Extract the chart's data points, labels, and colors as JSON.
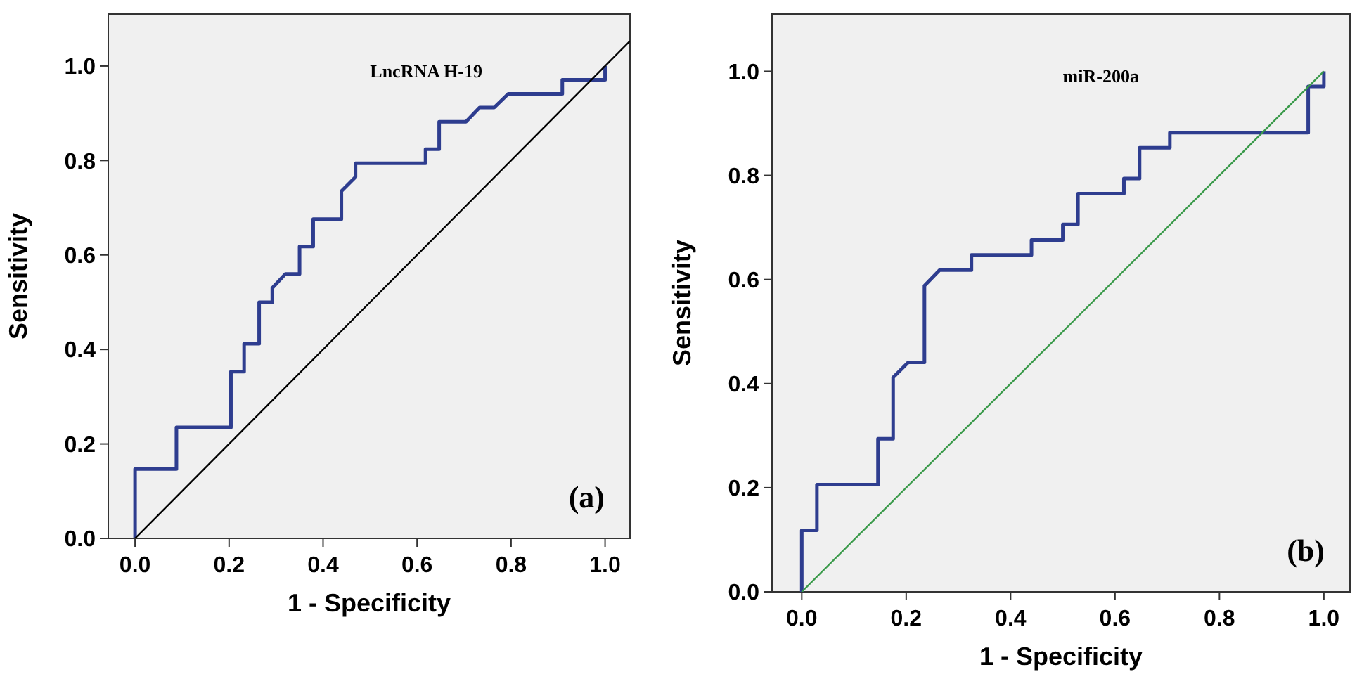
{
  "chart_data": [
    {
      "type": "line",
      "xlabel": "1 - Specificity",
      "ylabel": "Sensitivity",
      "annotations": [
        "LncRNA H-19",
        "(a)"
      ],
      "xlim": [
        -0.057,
        1.053
      ],
      "ylim": [
        0,
        1.11
      ],
      "xticks": [
        {
          "value": 0,
          "label": "0.0"
        },
        {
          "value": 0.2,
          "label": "0.2"
        },
        {
          "value": 0.4,
          "label": "0.4"
        },
        {
          "value": 0.6,
          "label": "0.6"
        },
        {
          "value": 0.8,
          "label": "0.8"
        },
        {
          "value": 1,
          "label": "1.0"
        }
      ],
      "yticks": [
        {
          "value": 0,
          "label": "0.0"
        },
        {
          "value": 0.2,
          "label": "0.2"
        },
        {
          "value": 0.4,
          "label": "0.4"
        },
        {
          "value": 0.6,
          "label": "0.6"
        },
        {
          "value": 0.8,
          "label": "0.8"
        },
        {
          "value": 1,
          "label": "1.0"
        }
      ],
      "grid": false,
      "series": [
        {
          "color": "#2e3d8f",
          "x": [
            0,
            0,
            0.088,
            0.088,
            0.204,
            0.204,
            0.232,
            0.232,
            0.264,
            0.264,
            0.292,
            0.292,
            0.32,
            0.35,
            0.35,
            0.379,
            0.379,
            0.439,
            0.439,
            0.469,
            0.469,
            0.618,
            0.618,
            0.647,
            0.647,
            0.704,
            0.733,
            0.764,
            0.794,
            0.909,
            0.909,
            1,
            1
          ],
          "values": [
            0,
            0.147,
            0.147,
            0.235,
            0.235,
            0.353,
            0.353,
            0.412,
            0.412,
            0.5,
            0.5,
            0.53,
            0.56,
            0.56,
            0.618,
            0.618,
            0.676,
            0.676,
            0.735,
            0.765,
            0.794,
            0.794,
            0.824,
            0.824,
            0.882,
            0.882,
            0.912,
            0.912,
            0.941,
            0.941,
            0.971,
            0.971,
            1
          ]
        },
        {
          "color": "#000000",
          "x": [
            0,
            1.053
          ],
          "values": [
            0,
            1.053
          ]
        }
      ]
    },
    {
      "type": "line",
      "xlabel": "1 - Specificity",
      "ylabel": "Sensitivity",
      "annotations": [
        "miR-200a",
        "(b)"
      ],
      "xlim": [
        -0.057,
        1.05
      ],
      "ylim": [
        0,
        1.11
      ],
      "xticks": [
        {
          "value": 0,
          "label": "0.0"
        },
        {
          "value": 0.2,
          "label": "0.2"
        },
        {
          "value": 0.4,
          "label": "0.4"
        },
        {
          "value": 0.6,
          "label": "0.6"
        },
        {
          "value": 0.8,
          "label": "0.8"
        },
        {
          "value": 1,
          "label": "1.0"
        }
      ],
      "yticks": [
        {
          "value": 0,
          "label": "0.0"
        },
        {
          "value": 0.2,
          "label": "0.2"
        },
        {
          "value": 0.4,
          "label": "0.4"
        },
        {
          "value": 0.6,
          "label": "0.6"
        },
        {
          "value": 0.8,
          "label": "0.8"
        },
        {
          "value": 1,
          "label": "1.0"
        }
      ],
      "grid": false,
      "series": [
        {
          "color": "#2e3d8f",
          "x": [
            0,
            0,
            0.029,
            0.029,
            0.146,
            0.146,
            0.175,
            0.175,
            0.204,
            0.235,
            0.235,
            0.264,
            0.325,
            0.325,
            0.44,
            0.44,
            0.5,
            0.5,
            0.529,
            0.529,
            0.617,
            0.617,
            0.647,
            0.647,
            0.705,
            0.705,
            0.97,
            0.97,
            1,
            1
          ],
          "values": [
            0,
            0.118,
            0.118,
            0.206,
            0.206,
            0.294,
            0.294,
            0.412,
            0.441,
            0.441,
            0.588,
            0.618,
            0.618,
            0.647,
            0.647,
            0.676,
            0.676,
            0.706,
            0.706,
            0.765,
            0.765,
            0.794,
            0.794,
            0.853,
            0.853,
            0.882,
            0.882,
            0.971,
            0.971,
            1
          ]
        },
        {
          "color": "#3a9a4a",
          "x": [
            0,
            1
          ],
          "values": [
            0,
            1
          ]
        }
      ]
    }
  ]
}
